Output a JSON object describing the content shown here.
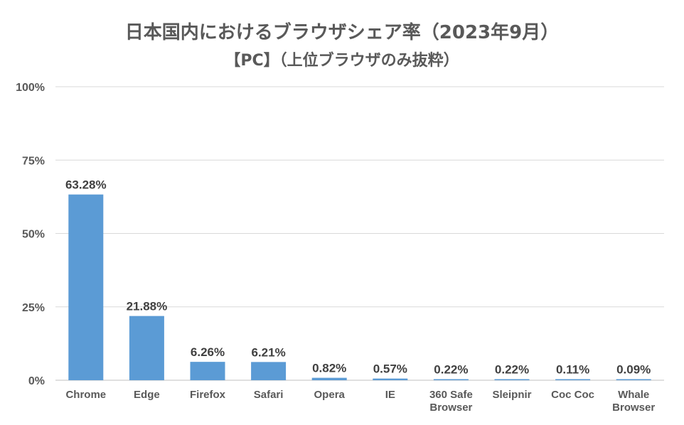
{
  "chart_data": {
    "type": "bar",
    "title": "日本国内におけるブラウザシェア率（2023年9月）",
    "subtitle": "【PC】（上位ブラウザのみ抜粋）",
    "categories": [
      "Chrome",
      "Edge",
      "Firefox",
      "Safari",
      "Opera",
      "IE",
      "360 Safe Browser",
      "Sleipnir",
      "Coc Coc",
      "Whale Browser"
    ],
    "values": [
      63.28,
      21.88,
      6.26,
      6.21,
      0.82,
      0.57,
      0.22,
      0.22,
      0.11,
      0.09
    ],
    "data_labels": [
      "63.28%",
      "21.88%",
      "6.26%",
      "6.21%",
      "0.82%",
      "0.57%",
      "0.22%",
      "0.22%",
      "0.11%",
      "0.09%"
    ],
    "yticks": [
      0,
      25,
      50,
      75,
      100
    ],
    "ytick_labels": [
      "0%",
      "25%",
      "50%",
      "75%",
      "100%"
    ],
    "ylim": [
      0,
      100
    ],
    "xlabel": "",
    "ylabel": "",
    "grid": true,
    "legend": "none",
    "bar_color": "#5B9BD5"
  }
}
